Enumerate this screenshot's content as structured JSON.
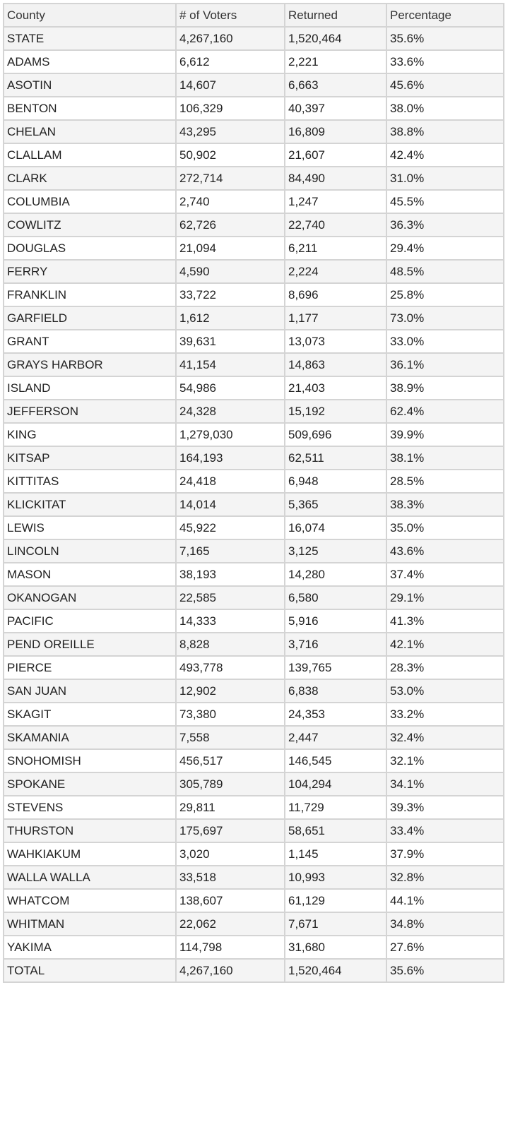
{
  "table": {
    "headers": [
      "County",
      "# of Voters",
      "Returned",
      "Percentage"
    ],
    "rows": [
      [
        "STATE",
        "4,267,160",
        "1,520,464",
        "35.6%"
      ],
      [
        "ADAMS",
        "6,612",
        "2,221",
        "33.6%"
      ],
      [
        "ASOTIN",
        "14,607",
        "6,663",
        "45.6%"
      ],
      [
        "BENTON",
        "106,329",
        "40,397",
        "38.0%"
      ],
      [
        "CHELAN",
        "43,295",
        "16,809",
        "38.8%"
      ],
      [
        "CLALLAM",
        "50,902",
        "21,607",
        "42.4%"
      ],
      [
        "CLARK",
        "272,714",
        "84,490",
        "31.0%"
      ],
      [
        "COLUMBIA",
        "2,740",
        "1,247",
        "45.5%"
      ],
      [
        "COWLITZ",
        "62,726",
        "22,740",
        "36.3%"
      ],
      [
        "DOUGLAS",
        "21,094",
        "6,211",
        "29.4%"
      ],
      [
        "FERRY",
        "4,590",
        "2,224",
        "48.5%"
      ],
      [
        "FRANKLIN",
        "33,722",
        "8,696",
        "25.8%"
      ],
      [
        "GARFIELD",
        "1,612",
        "1,177",
        "73.0%"
      ],
      [
        "GRANT",
        "39,631",
        "13,073",
        "33.0%"
      ],
      [
        "GRAYS HARBOR",
        "41,154",
        "14,863",
        "36.1%"
      ],
      [
        "ISLAND",
        "54,986",
        "21,403",
        "38.9%"
      ],
      [
        "JEFFERSON",
        "24,328",
        "15,192",
        "62.4%"
      ],
      [
        "KING",
        "1,279,030",
        "509,696",
        "39.9%"
      ],
      [
        "KITSAP",
        "164,193",
        "62,511",
        "38.1%"
      ],
      [
        "KITTITAS",
        "24,418",
        "6,948",
        "28.5%"
      ],
      [
        "KLICKITAT",
        "14,014",
        "5,365",
        "38.3%"
      ],
      [
        "LEWIS",
        "45,922",
        "16,074",
        "35.0%"
      ],
      [
        "LINCOLN",
        "7,165",
        "3,125",
        "43.6%"
      ],
      [
        "MASON",
        "38,193",
        "14,280",
        "37.4%"
      ],
      [
        "OKANOGAN",
        "22,585",
        "6,580",
        "29.1%"
      ],
      [
        "PACIFIC",
        "14,333",
        "5,916",
        "41.3%"
      ],
      [
        "PEND OREILLE",
        "8,828",
        "3,716",
        "42.1%"
      ],
      [
        "PIERCE",
        "493,778",
        "139,765",
        "28.3%"
      ],
      [
        "SAN JUAN",
        "12,902",
        "6,838",
        "53.0%"
      ],
      [
        "SKAGIT",
        "73,380",
        "24,353",
        "33.2%"
      ],
      [
        "SKAMANIA",
        "7,558",
        "2,447",
        "32.4%"
      ],
      [
        "SNOHOMISH",
        "456,517",
        "146,545",
        "32.1%"
      ],
      [
        "SPOKANE",
        "305,789",
        "104,294",
        "34.1%"
      ],
      [
        "STEVENS",
        "29,811",
        "11,729",
        "39.3%"
      ],
      [
        "THURSTON",
        "175,697",
        "58,651",
        "33.4%"
      ],
      [
        "WAHKIAKUM",
        "3,020",
        "1,145",
        "37.9%"
      ],
      [
        "WALLA WALLA",
        "33,518",
        "10,993",
        "32.8%"
      ],
      [
        "WHATCOM",
        "138,607",
        "61,129",
        "44.1%"
      ],
      [
        "WHITMAN",
        "22,062",
        "7,671",
        "34.8%"
      ],
      [
        "YAKIMA",
        "114,798",
        "31,680",
        "27.6%"
      ],
      [
        "TOTAL",
        "4,267,160",
        "1,520,464",
        "35.6%"
      ]
    ]
  }
}
